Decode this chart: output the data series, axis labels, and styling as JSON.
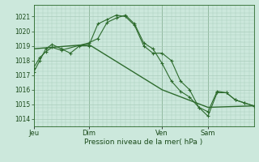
{
  "background_color": "#cce8dc",
  "grid_color": "#aaccbb",
  "line_color": "#2d6b2d",
  "marker_color": "#2d6b2d",
  "xlabel": "Pression niveau de la mer( hPa )",
  "ylim": [
    1013.5,
    1021.8
  ],
  "yticks": [
    1014,
    1015,
    1016,
    1017,
    1018,
    1019,
    1020,
    1021
  ],
  "day_labels": [
    "Jeu",
    "Dim",
    "Ven",
    "Sam"
  ],
  "day_positions": [
    0,
    36,
    84,
    114
  ],
  "xlim": [
    0,
    144
  ],
  "series1_x": [
    0,
    4,
    8,
    12,
    18,
    24,
    30,
    36,
    42,
    48,
    54,
    60,
    66,
    72,
    78,
    84,
    90,
    96,
    102,
    108,
    114,
    120,
    126,
    132,
    138,
    144
  ],
  "series1_y": [
    1017.2,
    1018.0,
    1018.8,
    1019.1,
    1018.8,
    1018.5,
    1019.0,
    1019.0,
    1020.5,
    1020.8,
    1021.1,
    1021.0,
    1020.4,
    1019.0,
    1018.5,
    1018.5,
    1018.0,
    1016.6,
    1016.0,
    1014.8,
    1014.5,
    1015.9,
    1015.8,
    1015.3,
    1015.1,
    1014.9
  ],
  "series2_x": [
    0,
    4,
    8,
    12,
    18,
    36,
    42,
    48,
    54,
    60,
    66,
    72,
    78,
    84,
    90,
    96,
    102,
    108,
    114,
    120,
    126,
    132,
    138,
    144
  ],
  "series2_y": [
    1017.5,
    1018.2,
    1018.6,
    1018.9,
    1018.7,
    1019.2,
    1019.5,
    1020.6,
    1020.9,
    1021.1,
    1020.5,
    1019.2,
    1018.8,
    1017.8,
    1016.6,
    1015.9,
    1015.5,
    1014.8,
    1014.2,
    1015.8,
    1015.8,
    1015.3,
    1015.1,
    1014.9
  ],
  "series3_x": [
    0,
    36,
    84,
    114,
    144
  ],
  "series3_y": [
    1018.8,
    1019.1,
    1016.0,
    1014.8,
    1014.9
  ]
}
